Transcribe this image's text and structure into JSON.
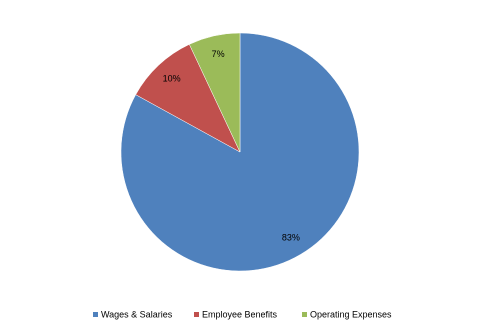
{
  "chart_data": {
    "type": "pie",
    "categories": [
      "Wages & Salaries",
      "Employee Benefits",
      "Operating Expenses"
    ],
    "values": [
      83,
      10,
      7
    ],
    "value_labels": [
      "83%",
      "10%",
      "7%"
    ],
    "colors": [
      "#4f81bd",
      "#c0504d",
      "#9bbb59"
    ],
    "legend": "bottom"
  }
}
